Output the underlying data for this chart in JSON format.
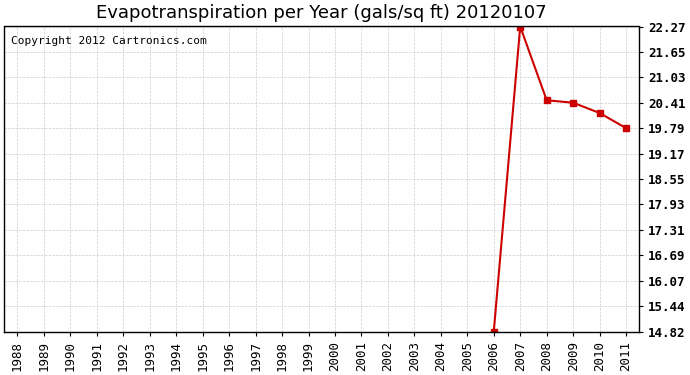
{
  "title": "Evapotranspiration per Year (gals/sq ft) 20120107",
  "copyright": "Copyright 2012 Cartronics.com",
  "x_years": [
    1988,
    1989,
    1990,
    1991,
    1992,
    1993,
    1994,
    1995,
    1996,
    1997,
    1998,
    1999,
    2000,
    2001,
    2002,
    2003,
    2004,
    2005,
    2006,
    2007,
    2008,
    2009,
    2010,
    2011
  ],
  "y_values": [
    null,
    null,
    null,
    null,
    null,
    null,
    null,
    null,
    null,
    null,
    null,
    null,
    null,
    null,
    null,
    null,
    null,
    null,
    14.82,
    22.27,
    20.47,
    20.41,
    20.16,
    19.79
  ],
  "ylim_min": 14.82,
  "ylim_max": 22.27,
  "yticks": [
    14.82,
    15.44,
    16.07,
    16.69,
    17.31,
    17.93,
    18.55,
    19.17,
    19.79,
    20.41,
    21.03,
    21.65,
    22.27
  ],
  "line_color": "#cc0000",
  "marker": "s",
  "marker_size": 4,
  "bg_color": "#ffffff",
  "plot_bg_color": "#ffffff",
  "grid_color": "#cccccc",
  "title_fontsize": 13,
  "tick_fontsize": 9,
  "copyright_fontsize": 8
}
